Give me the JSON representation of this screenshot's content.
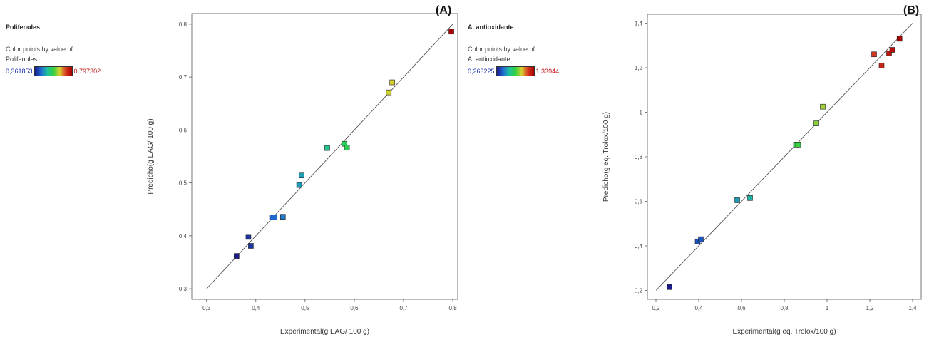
{
  "panels": {
    "a": {
      "tag": "(A)",
      "legend_title": "Polifenoles",
      "legend_caption_1": "Color points by value of",
      "legend_caption_2": "Polifenoles:",
      "scale_min": "0,361853",
      "scale_max": "0,797302"
    },
    "b": {
      "tag": "(B)",
      "legend_title": "A. antioxidante",
      "legend_caption_1": "Color points by value of",
      "legend_caption_2": "A. antioxidante:",
      "scale_min": "0,263225",
      "scale_max": "1,33944"
    }
  },
  "chart_data": [
    {
      "type": "scatter",
      "title": "",
      "xlabel": "Experimental(g EAG/ 100 g)",
      "ylabel": "Predicho(g EAG/ 100 g)",
      "xlim": [
        0.27,
        0.81
      ],
      "ylim": [
        0.28,
        0.82
      ],
      "xticks": [
        0.3,
        0.4,
        0.5,
        0.6,
        0.7,
        0.8
      ],
      "yticks": [
        0.3,
        0.4,
        0.5,
        0.6,
        0.7,
        0.8
      ],
      "xtick_labels": [
        "0,3",
        "0,4",
        "0,5",
        "0,6",
        "0,7",
        "0,8"
      ],
      "ytick_labels": [
        "0,3",
        "0,4",
        "0,5",
        "0,6",
        "0,7",
        "0,8"
      ],
      "color_range": [
        0.361853,
        0.797302
      ],
      "reference_line": [
        [
          0.3,
          0.3
        ],
        [
          0.8,
          0.8
        ]
      ],
      "points": [
        {
          "x": 0.361,
          "y": 0.362
        },
        {
          "x": 0.385,
          "y": 0.398
        },
        {
          "x": 0.39,
          "y": 0.381
        },
        {
          "x": 0.433,
          "y": 0.435
        },
        {
          "x": 0.438,
          "y": 0.435
        },
        {
          "x": 0.455,
          "y": 0.436
        },
        {
          "x": 0.488,
          "y": 0.496
        },
        {
          "x": 0.493,
          "y": 0.514
        },
        {
          "x": 0.545,
          "y": 0.566
        },
        {
          "x": 0.58,
          "y": 0.574
        },
        {
          "x": 0.585,
          "y": 0.567
        },
        {
          "x": 0.67,
          "y": 0.671
        },
        {
          "x": 0.677,
          "y": 0.69
        },
        {
          "x": 0.797,
          "y": 0.786
        }
      ]
    },
    {
      "type": "scatter",
      "title": "",
      "xlabel": "Experimental(g eq. Trolox/100 g)",
      "ylabel": "Predicho(g eq. Trolox/100 g)",
      "xlim": [
        0.16,
        1.44
      ],
      "ylim": [
        0.16,
        1.44
      ],
      "xticks": [
        0.2,
        0.4,
        0.6,
        0.8,
        1.0,
        1.2,
        1.4
      ],
      "yticks": [
        0.2,
        0.4,
        0.6,
        0.8,
        1.0,
        1.2,
        1.4
      ],
      "xtick_labels": [
        "0,2",
        "0,4",
        "0,6",
        "0,8",
        "1",
        "1,2",
        "1,4"
      ],
      "ytick_labels": [
        "0,2",
        "0,4",
        "0,6",
        "0,8",
        "1",
        "1,2",
        "1,4"
      ],
      "color_range": [
        0.263225,
        1.33944
      ],
      "reference_line": [
        [
          0.2,
          0.2
        ],
        [
          1.4,
          1.4
        ]
      ],
      "points": [
        {
          "x": 0.263,
          "y": 0.215
        },
        {
          "x": 0.395,
          "y": 0.42
        },
        {
          "x": 0.41,
          "y": 0.43
        },
        {
          "x": 0.58,
          "y": 0.605
        },
        {
          "x": 0.64,
          "y": 0.615
        },
        {
          "x": 0.855,
          "y": 0.855
        },
        {
          "x": 0.865,
          "y": 0.855
        },
        {
          "x": 0.95,
          "y": 0.95
        },
        {
          "x": 0.98,
          "y": 1.025
        },
        {
          "x": 1.22,
          "y": 1.26
        },
        {
          "x": 1.255,
          "y": 1.21
        },
        {
          "x": 1.29,
          "y": 1.265
        },
        {
          "x": 1.305,
          "y": 1.28
        },
        {
          "x": 1.339,
          "y": 1.33
        }
      ]
    }
  ]
}
